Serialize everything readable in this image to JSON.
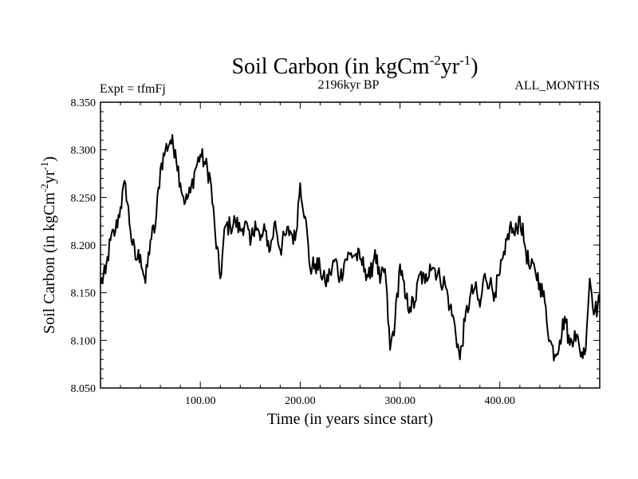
{
  "chart_data": {
    "type": "line",
    "title": {
      "main": "Soil Carbon (in kgCm",
      "sup1": "-2",
      "mid": "yr",
      "sup2": "-1",
      "close": ")"
    },
    "subtitle": "2196kyr BP",
    "experiment_label": "Expt = tfmFj",
    "period_label": "ALL_MONTHS",
    "xlabel": "Time (in years since start)",
    "ylabel": {
      "main": "Soil Carbon (in kgCm",
      "sup1": "-2",
      "mid": "yr",
      "sup2": "-1",
      "close": ")"
    },
    "xlim": [
      0,
      500
    ],
    "ylim": [
      8.05,
      8.35
    ],
    "x_ticks": [
      100,
      200,
      300,
      400
    ],
    "x_tick_labels": [
      "100.00",
      "200.00",
      "300.00",
      "400.00"
    ],
    "y_ticks": [
      8.05,
      8.1,
      8.15,
      8.2,
      8.25,
      8.3,
      8.35
    ],
    "y_tick_labels": [
      "8.050",
      "8.100",
      "8.150",
      "8.200",
      "8.250",
      "8.300",
      "8.350"
    ],
    "series": [
      {
        "name": "Soil Carbon",
        "color": "#000000",
        "x": [
          0,
          5,
          10,
          15,
          20,
          25,
          30,
          35,
          40,
          45,
          50,
          55,
          60,
          65,
          70,
          75,
          80,
          85,
          90,
          95,
          100,
          105,
          110,
          115,
          120,
          125,
          130,
          135,
          140,
          145,
          150,
          155,
          160,
          165,
          170,
          175,
          180,
          185,
          190,
          195,
          200,
          205,
          210,
          215,
          220,
          225,
          230,
          235,
          240,
          245,
          250,
          255,
          260,
          265,
          270,
          275,
          280,
          285,
          290,
          295,
          300,
          305,
          310,
          315,
          320,
          325,
          330,
          335,
          340,
          345,
          350,
          355,
          360,
          365,
          370,
          375,
          380,
          385,
          390,
          395,
          400,
          405,
          410,
          415,
          420,
          425,
          430,
          435,
          440,
          445,
          450,
          455,
          460,
          465,
          470,
          475,
          480,
          485,
          490,
          495,
          500
        ],
        "values": [
          8.16,
          8.17,
          8.205,
          8.215,
          8.24,
          8.265,
          8.215,
          8.185,
          8.19,
          8.16,
          8.205,
          8.22,
          8.28,
          8.3,
          8.31,
          8.3,
          8.265,
          8.245,
          8.255,
          8.28,
          8.295,
          8.285,
          8.27,
          8.21,
          8.165,
          8.22,
          8.22,
          8.225,
          8.215,
          8.225,
          8.2,
          8.225,
          8.205,
          8.215,
          8.195,
          8.225,
          8.195,
          8.21,
          8.215,
          8.205,
          8.265,
          8.23,
          8.175,
          8.18,
          8.175,
          8.16,
          8.17,
          8.185,
          8.165,
          8.185,
          8.19,
          8.19,
          8.185,
          8.175,
          8.165,
          8.195,
          8.16,
          8.175,
          8.09,
          8.12,
          8.18,
          8.145,
          8.135,
          8.14,
          8.17,
          8.16,
          8.18,
          8.175,
          8.165,
          8.16,
          8.135,
          8.115,
          8.08,
          8.12,
          8.145,
          8.155,
          8.135,
          8.17,
          8.16,
          8.15,
          8.17,
          8.19,
          8.22,
          8.21,
          8.23,
          8.2,
          8.175,
          8.175,
          8.16,
          8.14,
          8.1,
          8.085,
          8.1,
          8.125,
          8.095,
          8.11,
          8.09,
          8.085,
          8.165,
          8.13,
          8.14
        ]
      }
    ]
  }
}
